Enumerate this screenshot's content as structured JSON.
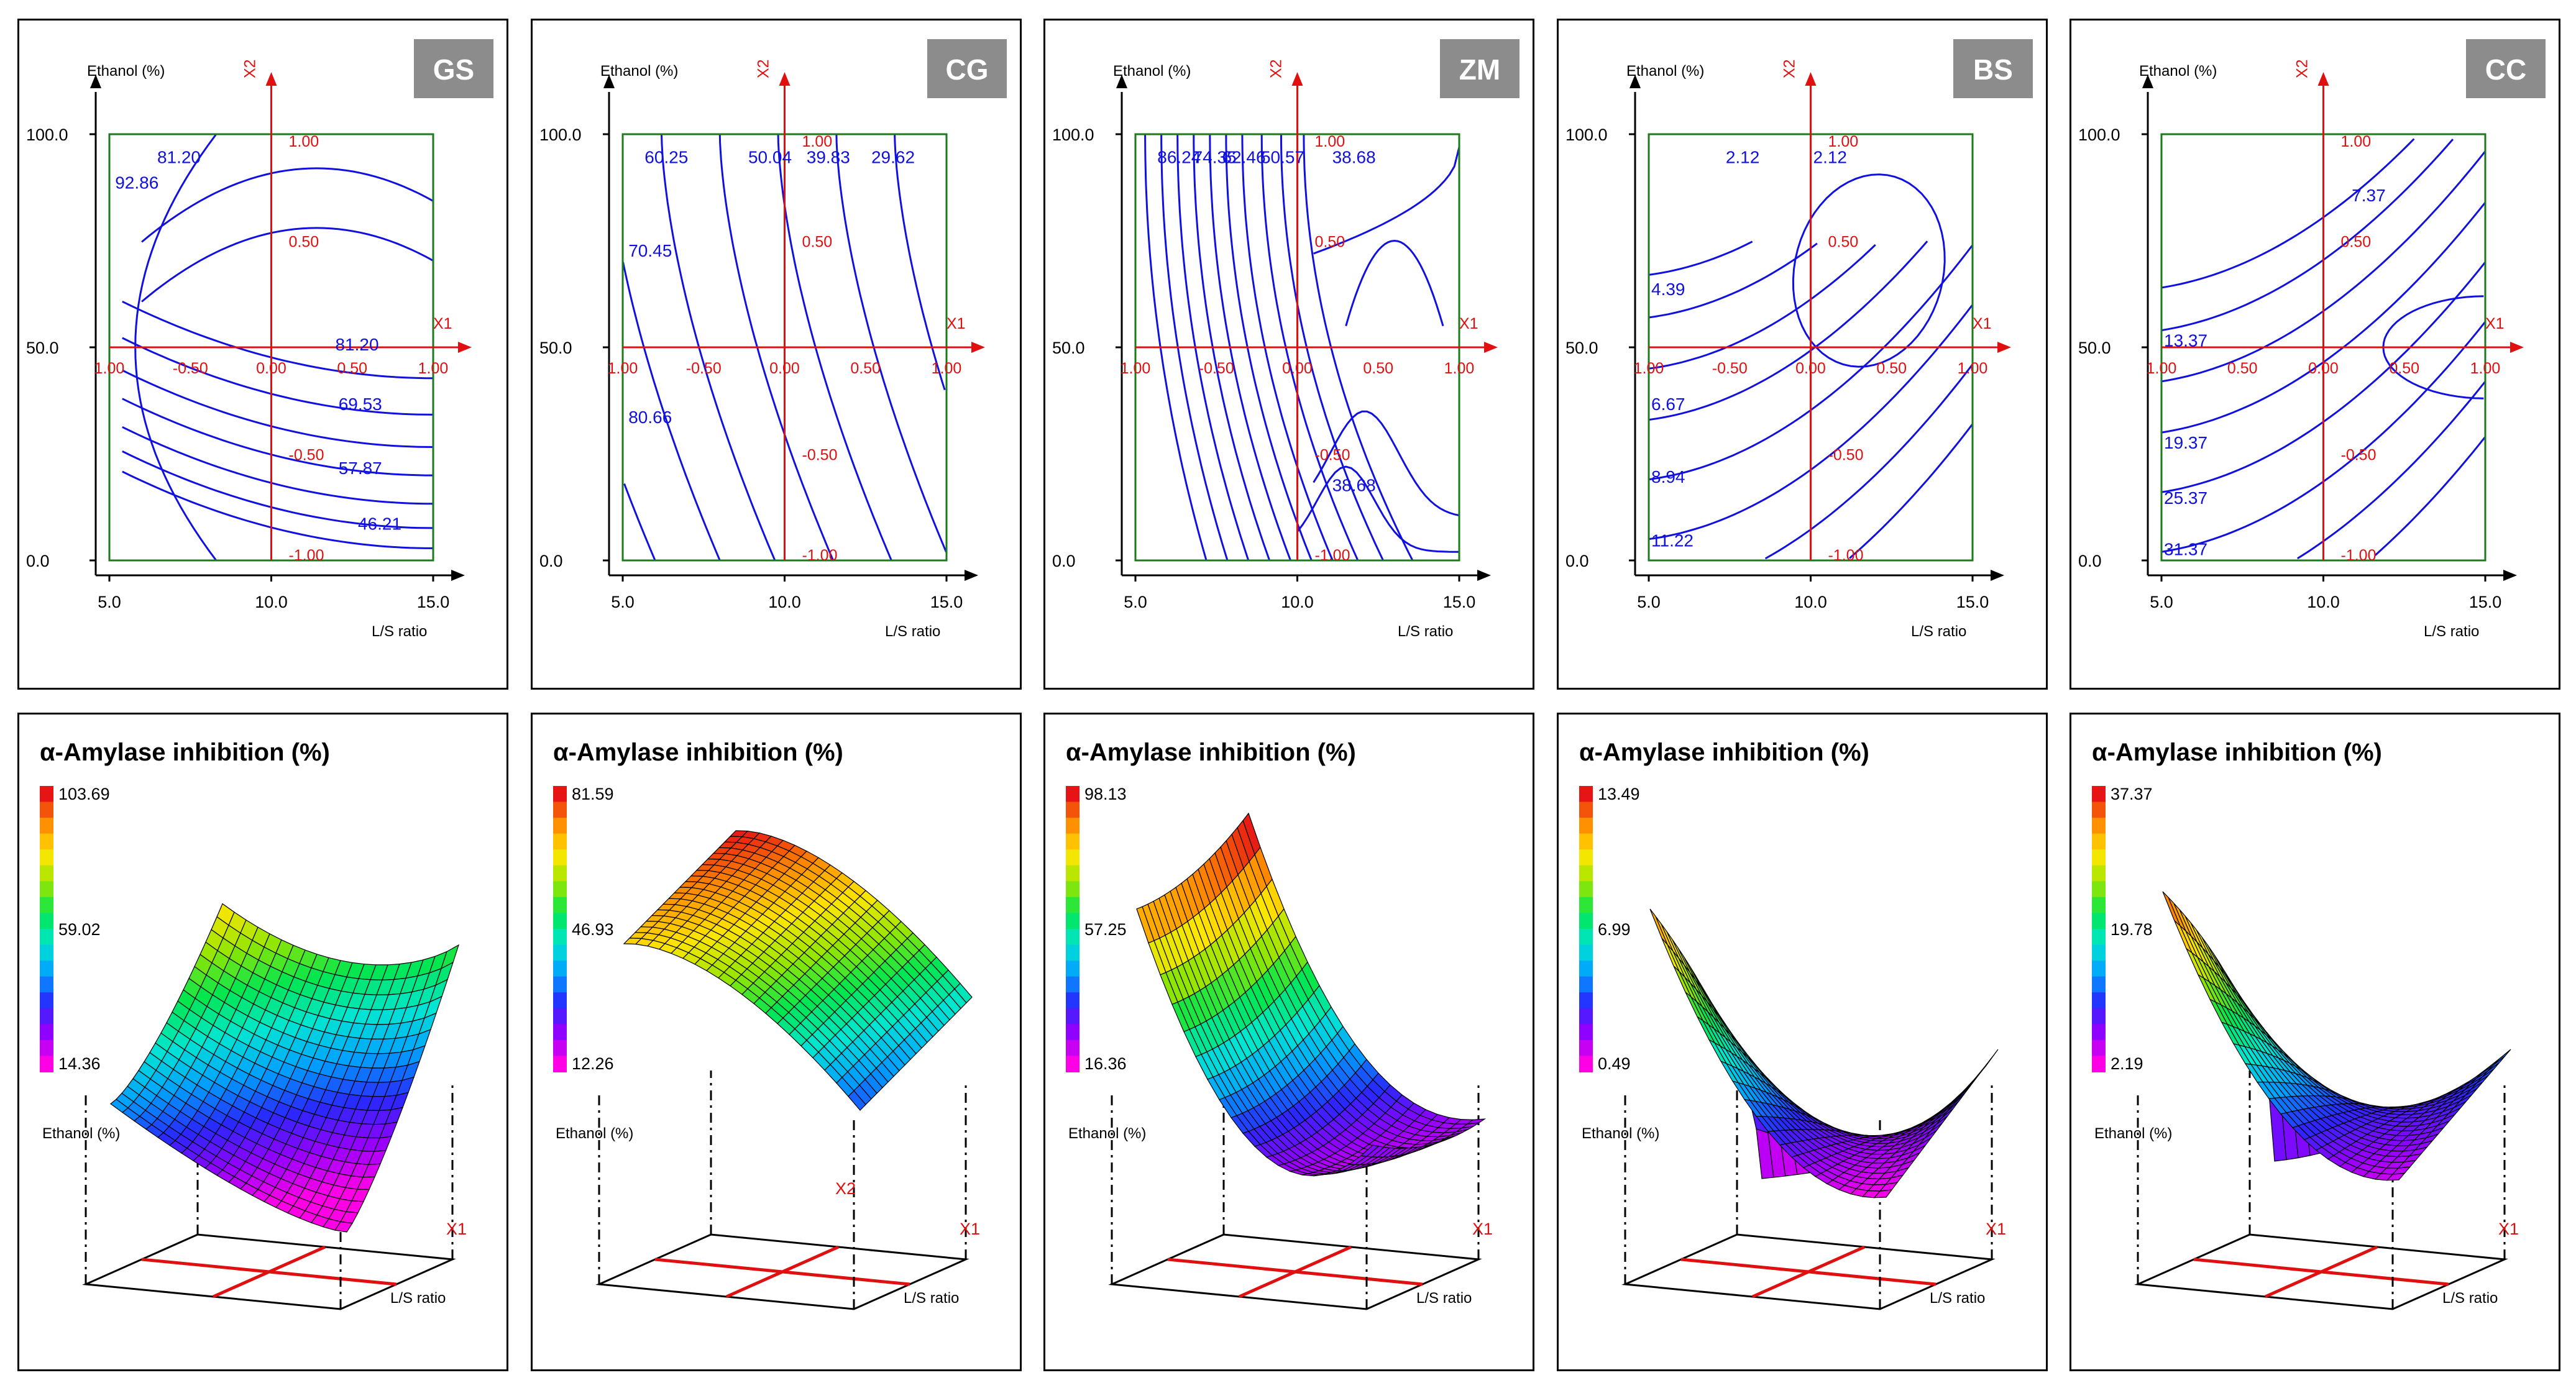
{
  "chart_data": [
    {
      "type": "contour",
      "sample": "GS",
      "x_axis_label": "L/S ratio",
      "y_axis_label": "Ethanol (%)",
      "x_ticks": [
        "5.0",
        "10.0",
        "15.0"
      ],
      "y_ticks": [
        "0.0",
        "50.0",
        "100.0"
      ],
      "coded_axis_labels": [
        "X1",
        "X2"
      ],
      "coded_x_ticks": [
        "1.00",
        "-0.50",
        "0.00",
        "0.50",
        "1.00"
      ],
      "coded_y_ticks": [
        "1.00",
        "0.50",
        "-0.50",
        "-1.00"
      ],
      "xlim": [
        5,
        15
      ],
      "ylim": [
        0,
        100
      ],
      "contour_labels": [
        "81.20",
        "92.86",
        "81.20",
        "69.53",
        "57.87",
        "46.21"
      ]
    },
    {
      "type": "contour",
      "sample": "CG",
      "x_axis_label": "L/S ratio",
      "y_axis_label": "Ethanol (%)",
      "x_ticks": [
        "5.0",
        "10.0",
        "15.0"
      ],
      "y_ticks": [
        "0.0",
        "50.0",
        "100.0"
      ],
      "coded_axis_labels": [
        "X1",
        "X2"
      ],
      "coded_x_ticks": [
        "1.00",
        "-0.50",
        "0.00",
        "0.50",
        "1.00"
      ],
      "coded_y_ticks": [
        "1.00",
        "0.50",
        "-0.50",
        "-1.00"
      ],
      "xlim": [
        5,
        15
      ],
      "ylim": [
        0,
        100
      ],
      "contour_labels": [
        "60.25",
        "50.04",
        "39.83",
        "29.62",
        "70.45",
        "80.66"
      ]
    },
    {
      "type": "contour",
      "sample": "ZM",
      "x_axis_label": "L/S ratio",
      "y_axis_label": "Ethanol (%)",
      "x_ticks": [
        "5.0",
        "10.0",
        "15.0"
      ],
      "y_ticks": [
        "0.0",
        "50.0",
        "100.0"
      ],
      "coded_axis_labels": [
        "X1",
        "X2"
      ],
      "coded_x_ticks": [
        "1.00",
        "-0.50",
        "0.00",
        "0.50",
        "1.00"
      ],
      "coded_y_ticks": [
        "1.00",
        "0.50",
        "-0.50",
        "-1.00"
      ],
      "xlim": [
        5,
        15
      ],
      "ylim": [
        0,
        100
      ],
      "contour_labels": [
        "86.24",
        "74.35",
        "62.46",
        "50.57",
        "38.68",
        "38.68"
      ]
    },
    {
      "type": "contour",
      "sample": "BS",
      "x_axis_label": "L/S ratio",
      "y_axis_label": "Ethanol (%)",
      "x_ticks": [
        "5.0",
        "10.0",
        "15.0"
      ],
      "y_ticks": [
        "0.0",
        "50.0",
        "100.0"
      ],
      "coded_axis_labels": [
        "X1",
        "X2"
      ],
      "coded_x_ticks": [
        "1.00",
        "-0.50",
        "0.00",
        "0.50",
        "1.00"
      ],
      "coded_y_ticks": [
        "1.00",
        "0.50",
        "-0.50",
        "-1.00"
      ],
      "xlim": [
        5,
        15
      ],
      "ylim": [
        0,
        100
      ],
      "contour_labels": [
        "2.12",
        "2.12",
        "4.39",
        "6.67",
        "8.94",
        "11.22"
      ]
    },
    {
      "type": "contour",
      "sample": "CC",
      "x_axis_label": "L/S ratio",
      "y_axis_label": "Ethanol (%)",
      "x_ticks": [
        "5.0",
        "10.0",
        "15.0"
      ],
      "y_ticks": [
        "0.0",
        "50.0",
        "100.0"
      ],
      "coded_axis_labels": [
        "X1",
        "X2"
      ],
      "coded_x_ticks": [
        "1.00",
        "0.50",
        "0.00",
        "0.50",
        "1.00"
      ],
      "coded_y_ticks": [
        "1.00",
        "0.50",
        "-0.50",
        "-1.00"
      ],
      "xlim": [
        5,
        15
      ],
      "ylim": [
        0,
        100
      ],
      "contour_labels": [
        "7.37",
        "13.37",
        "19.37",
        "25.37",
        "31.37"
      ]
    },
    {
      "type": "surface",
      "sample": "GS",
      "title": "α-Amylase inhibition (%)",
      "colorbar": {
        "max": "103.69",
        "mid": "59.02",
        "min": "14.36"
      },
      "axis_labels": {
        "y": "Ethanol (%)",
        "x": "L/S ratio",
        "coded_x": "X1",
        "coded_y": ""
      }
    },
    {
      "type": "surface",
      "sample": "CG",
      "title": "α-Amylase inhibition (%)",
      "colorbar": {
        "max": "81.59",
        "mid": "46.93",
        "min": "12.26"
      },
      "axis_labels": {
        "y": "Ethanol (%)",
        "x": "L/S ratio",
        "coded_x": "X1",
        "coded_y": "X2"
      }
    },
    {
      "type": "surface",
      "sample": "ZM",
      "title": "α-Amylase inhibition (%)",
      "colorbar": {
        "max": "98.13",
        "mid": "57.25",
        "min": "16.36"
      },
      "axis_labels": {
        "y": "Ethanol (%)",
        "x": "L/S ratio",
        "coded_x": "X1",
        "coded_y": ""
      }
    },
    {
      "type": "surface",
      "sample": "BS",
      "title": "α-Amylase inhibition (%)",
      "colorbar": {
        "max": "13.49",
        "mid": "6.99",
        "min": "0.49"
      },
      "axis_labels": {
        "y": "Ethanol (%)",
        "x": "L/S ratio",
        "coded_x": "X1",
        "coded_y": ""
      }
    },
    {
      "type": "surface",
      "sample": "CC",
      "title": "α-Amylase inhibition (%)",
      "colorbar": {
        "max": "37.37",
        "mid": "19.78",
        "min": "2.19"
      },
      "axis_labels": {
        "y": "Ethanol (%)",
        "x": "L/S ratio",
        "coded_x": "X1",
        "coded_y": ""
      }
    }
  ],
  "colors": {
    "frame": "#000000",
    "contour_box": "#1e7a1e",
    "contour_line": "#1010e0",
    "coded_axis": "#e01010",
    "badge_bg": "#8c8c8c",
    "badge_text": "#ffffff"
  }
}
